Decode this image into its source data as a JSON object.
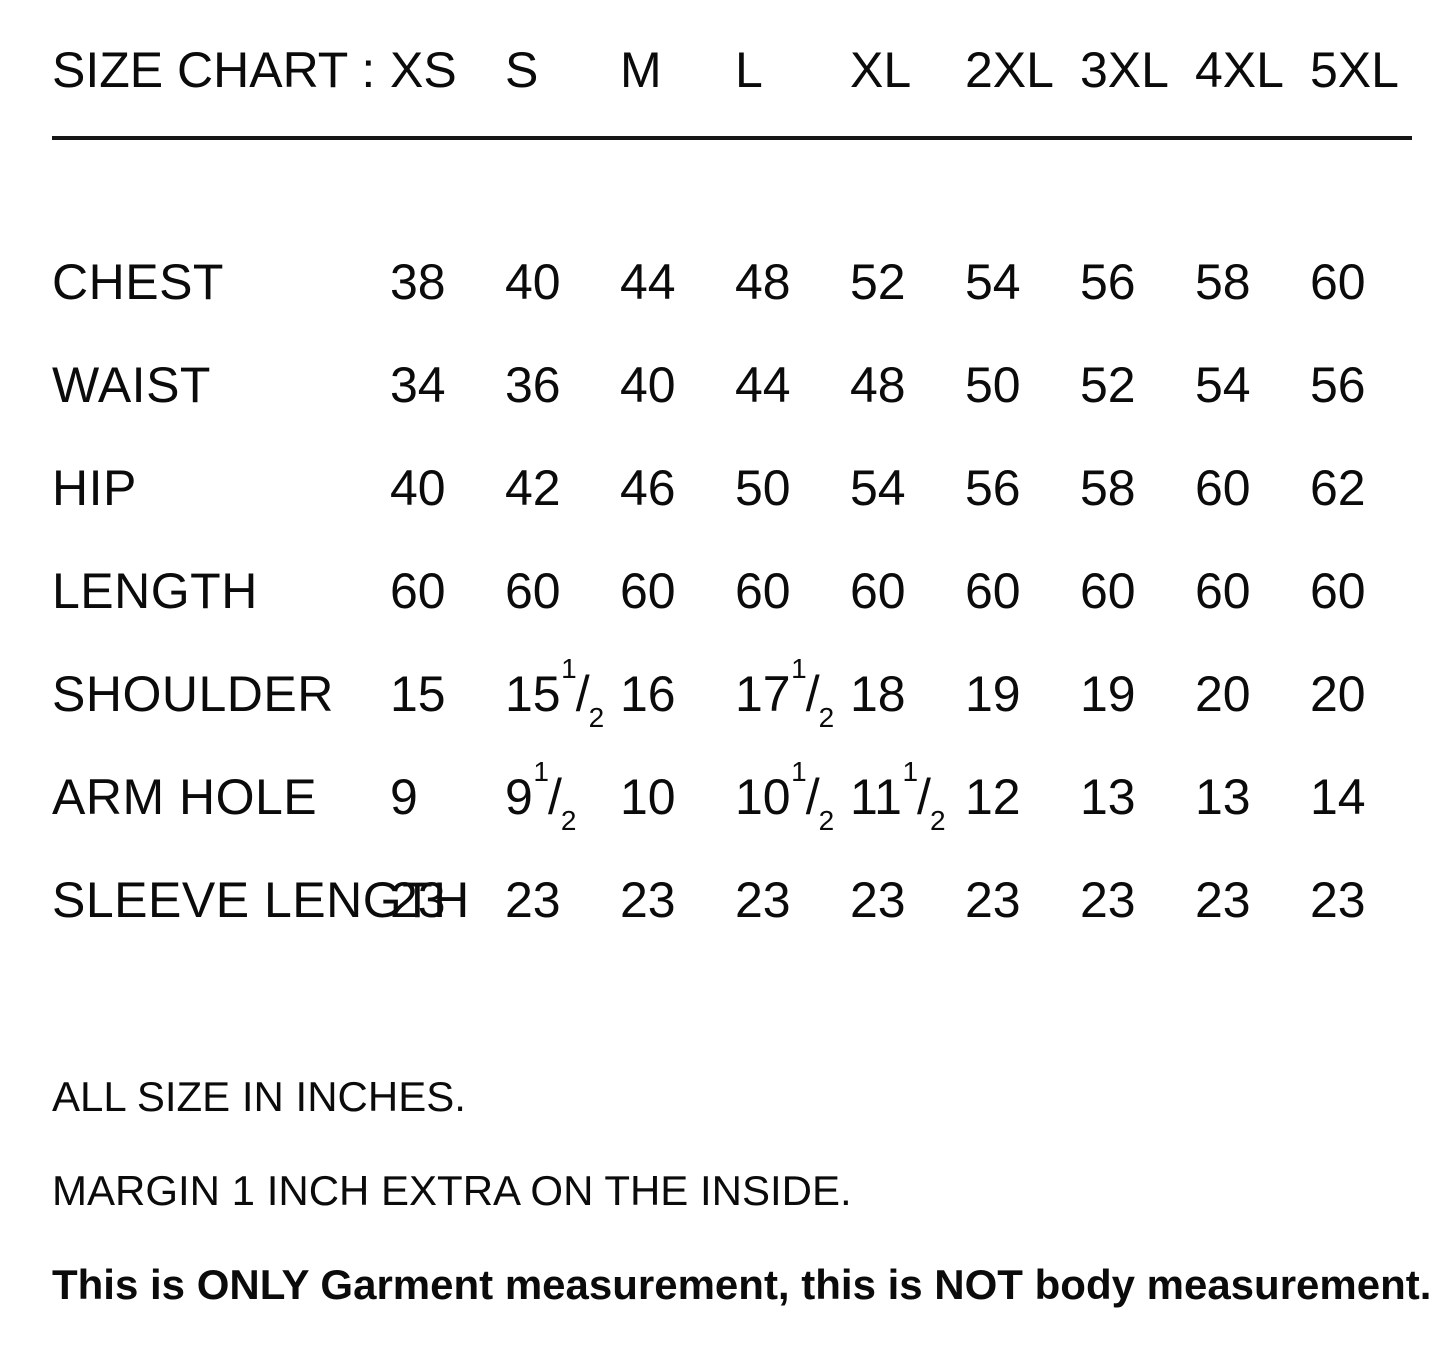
{
  "page": {
    "background_color": "#ffffff",
    "text_color": "#0b0b0b"
  },
  "header": {
    "title": "SIZE CHART :",
    "sizes": [
      "XS",
      "S",
      "M",
      "L",
      "XL",
      "2XL",
      "3XL",
      "4XL",
      "5XL"
    ]
  },
  "table": {
    "rows": [
      {
        "label": "CHEST",
        "values": [
          "38",
          "40",
          "44",
          "48",
          "52",
          "54",
          "56",
          "58",
          "60"
        ]
      },
      {
        "label": "WAIST",
        "values": [
          "34",
          "36",
          "40",
          "44",
          "48",
          "50",
          "52",
          "54",
          "56"
        ]
      },
      {
        "label": "HIP",
        "values": [
          "40",
          "42",
          "46",
          "50",
          "54",
          "56",
          "58",
          "60",
          "62"
        ]
      },
      {
        "label": "LENGTH",
        "values": [
          "60",
          "60",
          "60",
          "60",
          "60",
          "60",
          "60",
          "60",
          "60"
        ]
      },
      {
        "label": "SHOULDER",
        "values": [
          "15",
          "15 1/2",
          "16",
          "17 1/2",
          "18",
          "19",
          "19",
          "20",
          "20"
        ]
      },
      {
        "label": "ARM HOLE",
        "values": [
          "9",
          "9 1/2",
          "10",
          "10 1/2",
          "11 1/2",
          "12",
          "13",
          "13",
          "14"
        ]
      },
      {
        "label": "SLEEVE LENGTH",
        "values": [
          "23",
          "23",
          "23",
          "23",
          "23",
          "23",
          "23",
          "23",
          "23"
        ]
      }
    ]
  },
  "notes": [
    {
      "text": "ALL SIZE IN INCHES.",
      "bold": false
    },
    {
      "text": "MARGIN 1 INCH EXTRA ON THE INSIDE.",
      "bold": false
    },
    {
      "text": "This is ONLY Garment measurement, this is NOT body measurement.",
      "bold": true
    }
  ]
}
